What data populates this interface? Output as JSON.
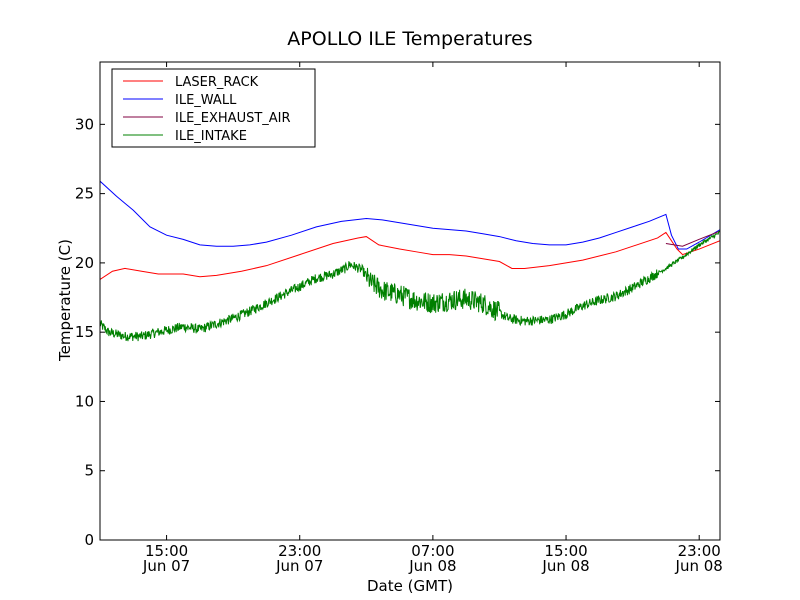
{
  "chart_data": {
    "type": "line",
    "title": "APOLLO ILE Temperatures",
    "xlabel": "Date (GMT)",
    "ylabel": "Temperature (C)",
    "ylim": [
      0,
      34.5
    ],
    "yticks": [
      0,
      5,
      10,
      15,
      20,
      25,
      30
    ],
    "xlim": [
      "Jun 07 11:00",
      "Jun 09 00:15"
    ],
    "xticks": [
      {
        "time": "Jun 07 15:00",
        "line1": "15:00",
        "line2": "Jun 07"
      },
      {
        "time": "Jun 07 23:00",
        "line1": "23:00",
        "line2": "Jun 07"
      },
      {
        "time": "Jun 08 07:00",
        "line1": "07:00",
        "line2": "Jun 08"
      },
      {
        "time": "Jun 08 15:00",
        "line1": "15:00",
        "line2": "Jun 08"
      },
      {
        "time": "Jun 08 23:00",
        "line1": "23:00",
        "line2": "Jun 08"
      }
    ],
    "grid": false,
    "legend_position": "top-left",
    "series": [
      {
        "name": "LASER_RACK",
        "color": "#ff0000",
        "points": [
          [
            "Jun 07 11:00",
            18.8
          ],
          [
            "Jun 07 11:45",
            19.4
          ],
          [
            "Jun 07 12:30",
            19.6
          ],
          [
            "Jun 07 13:30",
            19.4
          ],
          [
            "Jun 07 14:30",
            19.2
          ],
          [
            "Jun 07 16:00",
            19.2
          ],
          [
            "Jun 07 17:00",
            19.0
          ],
          [
            "Jun 07 18:00",
            19.1
          ],
          [
            "Jun 07 19:30",
            19.4
          ],
          [
            "Jun 07 21:00",
            19.8
          ],
          [
            "Jun 07 23:00",
            20.6
          ],
          [
            "Jun 08 01:00",
            21.4
          ],
          [
            "Jun 08 02:30",
            21.8
          ],
          [
            "Jun 08 03:00",
            21.9
          ],
          [
            "Jun 08 03:45",
            21.3
          ],
          [
            "Jun 08 05:00",
            21.0
          ],
          [
            "Jun 08 06:00",
            20.8
          ],
          [
            "Jun 08 07:00",
            20.6
          ],
          [
            "Jun 08 08:00",
            20.6
          ],
          [
            "Jun 08 09:00",
            20.5
          ],
          [
            "Jun 08 10:00",
            20.3
          ],
          [
            "Jun 08 11:00",
            20.1
          ],
          [
            "Jun 08 11:45",
            19.6
          ],
          [
            "Jun 08 12:30",
            19.6
          ],
          [
            "Jun 08 14:00",
            19.8
          ],
          [
            "Jun 08 16:00",
            20.2
          ],
          [
            "Jun 08 18:00",
            20.8
          ],
          [
            "Jun 08 20:30",
            21.8
          ],
          [
            "Jun 08 21:00",
            22.2
          ],
          [
            "Jun 08 21:40",
            21.0
          ],
          [
            "Jun 08 22:00",
            20.6
          ],
          [
            "Jun 08 23:00",
            21.0
          ],
          [
            "Jun 09 00:15",
            21.6
          ]
        ]
      },
      {
        "name": "ILE_WALL",
        "color": "#0000ff",
        "points": [
          [
            "Jun 07 11:00",
            25.9
          ],
          [
            "Jun 07 12:00",
            24.8
          ],
          [
            "Jun 07 13:00",
            23.8
          ],
          [
            "Jun 07 14:00",
            22.6
          ],
          [
            "Jun 07 15:00",
            22.0
          ],
          [
            "Jun 07 16:00",
            21.7
          ],
          [
            "Jun 07 17:00",
            21.3
          ],
          [
            "Jun 07 18:00",
            21.2
          ],
          [
            "Jun 07 19:00",
            21.2
          ],
          [
            "Jun 07 20:00",
            21.3
          ],
          [
            "Jun 07 21:00",
            21.5
          ],
          [
            "Jun 07 22:30",
            22.0
          ],
          [
            "Jun 08 00:00",
            22.6
          ],
          [
            "Jun 08 01:30",
            23.0
          ],
          [
            "Jun 08 03:00",
            23.2
          ],
          [
            "Jun 08 04:00",
            23.1
          ],
          [
            "Jun 08 05:00",
            22.9
          ],
          [
            "Jun 08 06:00",
            22.7
          ],
          [
            "Jun 08 07:00",
            22.5
          ],
          [
            "Jun 08 08:00",
            22.4
          ],
          [
            "Jun 08 09:00",
            22.3
          ],
          [
            "Jun 08 10:00",
            22.1
          ],
          [
            "Jun 08 11:00",
            21.9
          ],
          [
            "Jun 08 12:00",
            21.6
          ],
          [
            "Jun 08 13:00",
            21.4
          ],
          [
            "Jun 08 14:00",
            21.3
          ],
          [
            "Jun 08 15:00",
            21.3
          ],
          [
            "Jun 08 16:00",
            21.5
          ],
          [
            "Jun 08 17:00",
            21.8
          ],
          [
            "Jun 08 18:00",
            22.2
          ],
          [
            "Jun 08 19:00",
            22.6
          ],
          [
            "Jun 08 20:00",
            23.0
          ],
          [
            "Jun 08 21:00",
            23.5
          ],
          [
            "Jun 08 21:20",
            22.0
          ],
          [
            "Jun 08 21:45",
            21.0
          ],
          [
            "Jun 08 22:15",
            21.0
          ],
          [
            "Jun 08 23:00",
            21.5
          ],
          [
            "Jun 09 00:15",
            22.4
          ]
        ]
      },
      {
        "name": "ILE_EXHAUST_AIR",
        "color": "#800040",
        "points": [
          [
            "Jun 08 21:00",
            21.4
          ],
          [
            "Jun 08 22:00",
            21.2
          ],
          [
            "Jun 08 23:00",
            21.7
          ],
          [
            "Jun 09 00:15",
            22.3
          ]
        ]
      },
      {
        "name": "ILE_INTAKE",
        "color": "#008000",
        "noise": 0.35,
        "points": [
          [
            "Jun 07 11:00",
            15.6
          ],
          [
            "Jun 07 11:30",
            15.0
          ],
          [
            "Jun 07 12:30",
            14.7
          ],
          [
            "Jun 07 13:30",
            14.7
          ],
          [
            "Jun 07 14:30",
            15.0
          ],
          [
            "Jun 07 16:00",
            15.4
          ],
          [
            "Jun 07 17:00",
            15.2
          ],
          [
            "Jun 07 18:00",
            15.6
          ],
          [
            "Jun 07 19:00",
            16.0
          ],
          [
            "Jun 07 20:00",
            16.5
          ],
          [
            "Jun 07 21:00",
            17.1
          ],
          [
            "Jun 07 22:00",
            17.7
          ],
          [
            "Jun 07 23:00",
            18.3
          ],
          [
            "Jun 08 00:00",
            18.9
          ],
          [
            "Jun 08 01:00",
            19.2
          ],
          [
            "Jun 08 01:45",
            19.6
          ],
          [
            "Jun 08 02:00",
            19.9
          ],
          [
            "Jun 08 02:45",
            19.5
          ],
          [
            "Jun 08 03:15",
            18.6
          ],
          [
            "Jun 08 04:00",
            18.0
          ],
          [
            "Jun 08 05:00",
            17.7
          ],
          [
            "Jun 08 06:00",
            17.3
          ],
          [
            "Jun 08 07:00",
            17.1
          ],
          [
            "Jun 08 08:00",
            17.3
          ],
          [
            "Jun 08 09:00",
            17.4
          ],
          [
            "Jun 08 10:00",
            17.1
          ],
          [
            "Jun 08 10:45",
            16.6
          ],
          [
            "Jun 08 11:30",
            16.0
          ],
          [
            "Jun 08 12:30",
            15.8
          ],
          [
            "Jun 08 14:00",
            15.9
          ],
          [
            "Jun 08 15:00",
            16.3
          ],
          [
            "Jun 08 16:00",
            16.9
          ],
          [
            "Jun 08 17:00",
            17.3
          ],
          [
            "Jun 08 18:00",
            17.6
          ],
          [
            "Jun 08 19:00",
            18.2
          ],
          [
            "Jun 08 20:00",
            18.9
          ],
          [
            "Jun 08 21:00",
            19.6
          ],
          [
            "Jun 08 22:00",
            20.4
          ],
          [
            "Jun 08 23:00",
            21.3
          ],
          [
            "Jun 09 00:15",
            22.2
          ]
        ]
      }
    ]
  }
}
